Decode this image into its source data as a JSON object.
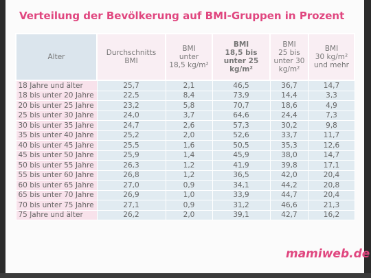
{
  "title": "Verteilung der Bevölkerung auf BMI-Gruppen in Prozent",
  "logo": "mamiweb.de",
  "table": {
    "header": [
      [
        "Alter"
      ],
      [
        "Durchschnitts",
        "BMI"
      ],
      [
        "BMI",
        "unter",
        "18,5 kg/m²"
      ],
      [
        "BMI",
        "18,5 bis",
        "unter 25",
        "kg/m²"
      ],
      [
        "BMI",
        "25 bis",
        "unter 30",
        "kg/m²"
      ],
      [
        "BMI",
        "30 kg/m²",
        "und mehr"
      ]
    ],
    "rows": [
      [
        "18 Jahre und älter",
        "25,7",
        "2,1",
        "46,5",
        "36,7",
        "14,7"
      ],
      [
        "18 bis unter 20 Jahre",
        "22,5",
        "8,4",
        "73,9",
        "14,4",
        "3,3"
      ],
      [
        "20 bis unter 25 Jahre",
        "23,2",
        "5,8",
        "70,7",
        "18,6",
        "4,9"
      ],
      [
        "25 bis unter 30 Jahre",
        "24,0",
        "3,7",
        "64,6",
        "24,4",
        "7,3"
      ],
      [
        "30 bis unter 35 Jahre",
        "24,7",
        "2,6",
        "57,3",
        "30,2",
        "9,8"
      ],
      [
        "35 bis unter 40 Jahre",
        "25,2",
        "2,0",
        "52,6",
        "33,7",
        "11,7"
      ],
      [
        "40 bis unter 45 Jahre",
        "25,5",
        "1,6",
        "50,5",
        "35,3",
        "12,6"
      ],
      [
        "45 bis unter 50 Jahre",
        "25,9",
        "1,4",
        "45,9",
        "38,0",
        "14,7"
      ],
      [
        "50 bis unter 55 Jahre",
        "26,3",
        "1,2",
        "41,9",
        "39,8",
        "17,1"
      ],
      [
        "55 bis unter 60 Jahre",
        "26,8",
        "1,2",
        "36,5",
        "42,0",
        "20,4"
      ],
      [
        "60 bis unter 65 Jahre",
        "27,0",
        "0,9",
        "34,1",
        "44,2",
        "20,8"
      ],
      [
        "65 bis unter 70 Jahre",
        "26,9",
        "1,0",
        "33,9",
        "44,7",
        "20,4"
      ],
      [
        "70 bis unter 75 Jahre",
        "27,1",
        "0,9",
        "31,2",
        "46,6",
        "21,3"
      ],
      [
        "75 Jahre und älter",
        "26,2",
        "2,0",
        "39,1",
        "42,7",
        "16,2"
      ]
    ]
  }
}
